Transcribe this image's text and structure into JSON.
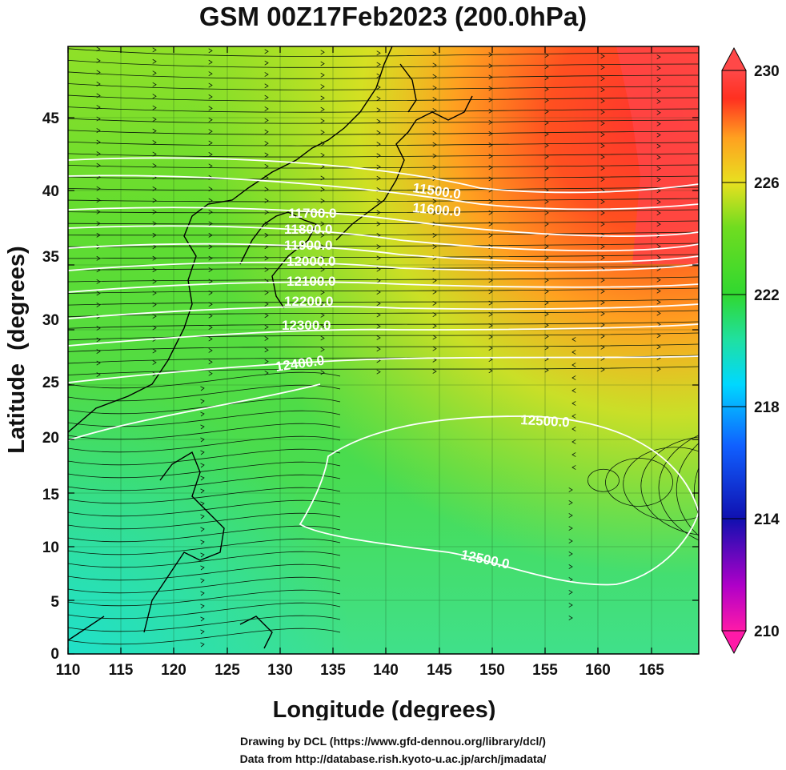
{
  "title": "GSM 00Z17Feb2023 (200.0hPa)",
  "x_axis": {
    "label": "Longitude (degrees)",
    "ticks": [
      "110",
      "115",
      "120",
      "125",
      "130",
      "135",
      "140",
      "145",
      "150",
      "155",
      "160",
      "165"
    ]
  },
  "y_axis": {
    "label": "Latitude  (degrees)",
    "ticks": [
      "0",
      "5",
      "10",
      "15",
      "20",
      "25",
      "30",
      "35",
      "40",
      "45"
    ]
  },
  "colorbar": {
    "labels": [
      "230",
      "226",
      "222",
      "218",
      "214",
      "210"
    ],
    "colors": [
      "#ff1aa8",
      "#a000c8",
      "#1010b0",
      "#1060ff",
      "#00d8ff",
      "#20e0a0",
      "#30d830",
      "#30d830",
      "#b8e820",
      "#ffe020",
      "#ffb000",
      "#ff6020",
      "#ff2020",
      "#ff4040"
    ]
  },
  "contours": [
    {
      "label": "11500.0"
    },
    {
      "label": "11600.0"
    },
    {
      "label": "11700.0"
    },
    {
      "label": "11800.0"
    },
    {
      "label": "11900.0"
    },
    {
      "label": "12000.0"
    },
    {
      "label": "12100.0"
    },
    {
      "label": "12200.0"
    },
    {
      "label": "12300.0"
    },
    {
      "label": "12400.0"
    },
    {
      "label": "12500.0"
    },
    {
      "label": "12500.0"
    }
  ],
  "footer": {
    "line1": "Drawing by DCL (https://www.gfd-dennou.org/library/dcl/)",
    "line2": "Data from http://database.rish.kyoto-u.ac.jp/arch/jmadata/"
  }
}
